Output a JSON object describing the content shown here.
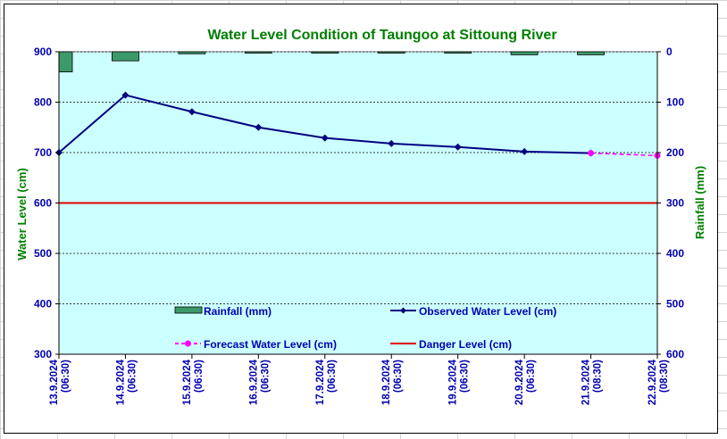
{
  "chart_data": {
    "type": "line",
    "title": "Water Level Condition of Taungoo at  Sittoung River",
    "ylabel_left": "Water Level (cm)",
    "ylabel_right": "Rainfall (mm)",
    "ylim_left": [
      300,
      900
    ],
    "ylim_right": [
      600,
      0
    ],
    "yticks_left": [
      "900",
      "800",
      "700",
      "600",
      "500",
      "400",
      "300"
    ],
    "yticks_right": [
      "0",
      "100",
      "200",
      "300",
      "400",
      "500",
      "600"
    ],
    "categories": [
      [
        "13.9.2024",
        "(06:30)"
      ],
      [
        "14.9.2024",
        "(06:30)"
      ],
      [
        "15.9.2024",
        "(06:30)"
      ],
      [
        "16.9.2024",
        "(06:30)"
      ],
      [
        "17.9.2024",
        "(06:30)"
      ],
      [
        "18.9.2024",
        "(06:30)"
      ],
      [
        "19.9.2024",
        "(06:30)"
      ],
      [
        "20.9.2024",
        "(06:30)"
      ],
      [
        "21.9.2024",
        "(08:30)"
      ],
      [
        "22.9.2024",
        "(08:30)"
      ]
    ],
    "series": [
      {
        "name": "Rainfall (mm)",
        "kind": "bar",
        "axis": "right",
        "color": "#3c9a6a",
        "values": [
          40,
          18,
          4,
          0,
          0,
          2,
          2,
          6,
          6,
          null
        ]
      },
      {
        "name": "Observed Water Level (cm)",
        "kind": "line",
        "axis": "left",
        "color": "#000080",
        "values": [
          700,
          814,
          781,
          750,
          729,
          718,
          711,
          702,
          699,
          null
        ]
      },
      {
        "name": "Forecast Water Level (cm)",
        "kind": "dashed-line",
        "axis": "left",
        "color": "#ff00ff",
        "values": [
          null,
          null,
          null,
          null,
          null,
          null,
          null,
          null,
          699,
          694
        ]
      },
      {
        "name": "Danger Level (cm)",
        "kind": "constant",
        "axis": "left",
        "color": "#e00000",
        "value": 600
      }
    ],
    "plot_background": "#ccffff",
    "grid": true,
    "legend": "inside-bottom"
  }
}
